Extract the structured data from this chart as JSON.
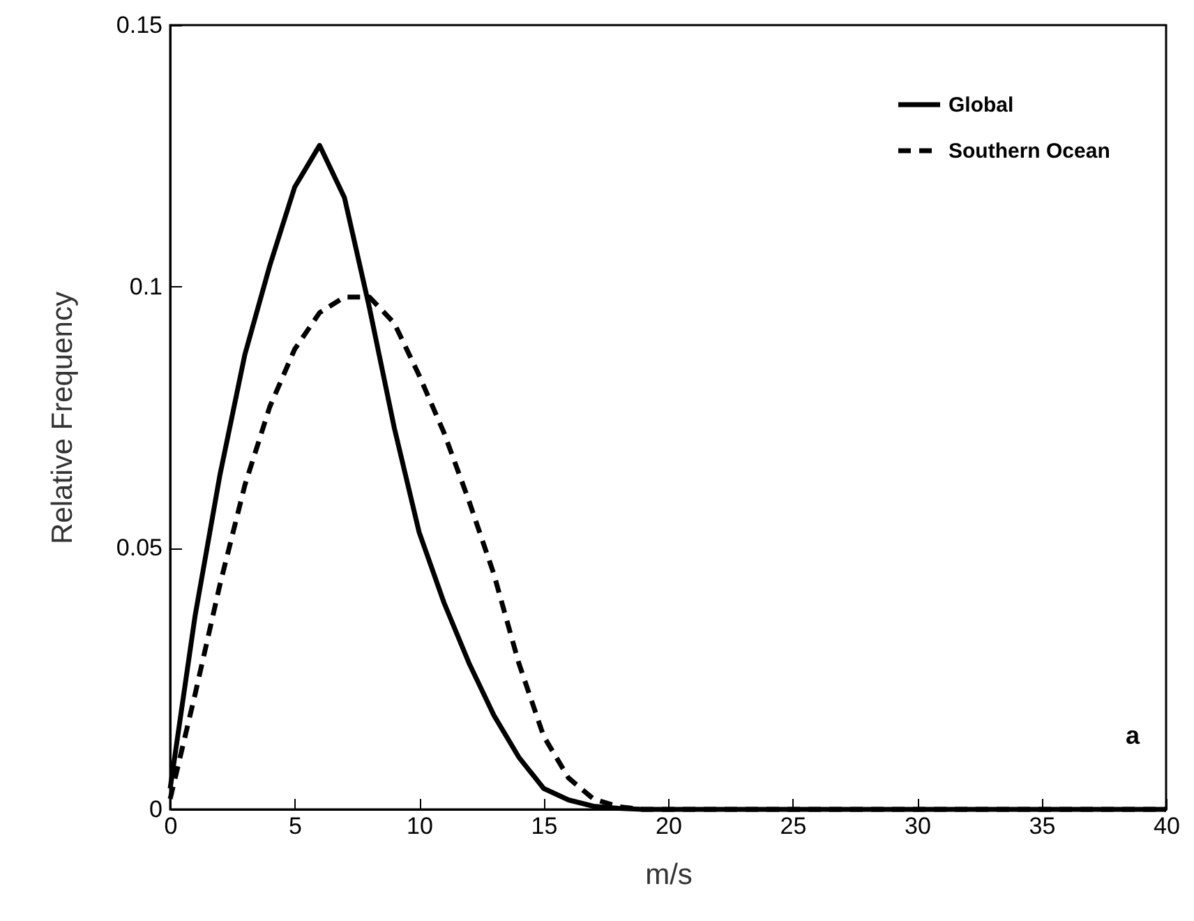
{
  "chart_data": {
    "type": "line",
    "xlabel": "m/s",
    "ylabel": "Relative Frequency",
    "x": [
      0,
      1,
      2,
      3,
      4,
      5,
      6,
      7,
      8,
      9,
      10,
      11,
      12,
      13,
      14,
      15,
      16,
      17,
      18,
      19,
      20,
      40
    ],
    "series": [
      {
        "name": "Global",
        "color": "#000000",
        "line_style": "solid",
        "values": [
          0.004,
          0.037,
          0.064,
          0.087,
          0.104,
          0.119,
          0.127,
          0.117,
          0.096,
          0.073,
          0.053,
          0.0395,
          0.028,
          0.018,
          0.01,
          0.004,
          0.0018,
          0.0006,
          0.0002,
          0,
          0,
          0
        ]
      },
      {
        "name": "Southern Ocean",
        "color": "#000000",
        "line_style": "dashed",
        "values": [
          0.002,
          0.022,
          0.043,
          0.062,
          0.077,
          0.088,
          0.095,
          0.098,
          0.098,
          0.093,
          0.083,
          0.072,
          0.059,
          0.045,
          0.028,
          0.014,
          0.006,
          0.002,
          0.0005,
          0,
          0,
          0
        ]
      }
    ],
    "xlim": [
      0,
      40
    ],
    "xticks": [
      0,
      5,
      10,
      15,
      20,
      25,
      30,
      35,
      40
    ],
    "ylim": [
      0,
      0.15
    ],
    "yticks": [
      0,
      0.05,
      0.1,
      0.15
    ],
    "legend": "top right",
    "grid": false,
    "marker": "none",
    "annotations": [
      "a"
    ]
  }
}
